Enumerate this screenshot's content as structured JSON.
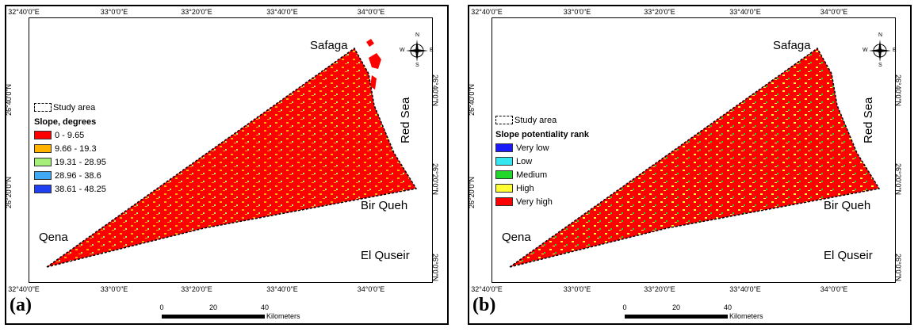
{
  "panels": [
    {
      "label": "(a)",
      "top_ticks": [
        "32°40'0\"E",
        "33°0'0\"E",
        "33°20'0\"E",
        "33°40'0\"E",
        "34°0'0\"E"
      ],
      "bottom_ticks": [
        "32°40'0\"E",
        "33°0'0\"E",
        "33°20'0\"E",
        "33°40'0\"E",
        "34°0'0\"E"
      ],
      "left_ticks": [
        "26°40'0\"N",
        "26°20'0\"N"
      ],
      "right_ticks": [
        "26°40'0\"N",
        "26°20'0\"N",
        "26°0'0\"N"
      ],
      "places": {
        "safaga": "Safaga",
        "red_sea": "Red Sea",
        "bir_queh": "Bir Queh",
        "qena": "Qena",
        "el_quseir": "El Quseir"
      },
      "study_area": "Study area",
      "legend_title": "Slope, degrees",
      "legend_items": [
        {
          "label": "0 - 9.65",
          "color": "#ff0000"
        },
        {
          "label": "9.66 - 19.3",
          "color": "#ffb300"
        },
        {
          "label": "19.31 - 28.95",
          "color": "#a6f07a"
        },
        {
          "label": "28.96 - 38.6",
          "color": "#3fa9f5"
        },
        {
          "label": "38.61 - 48.25",
          "color": "#1f3ff0"
        }
      ],
      "scale": {
        "ticks": [
          "0",
          "20",
          "40"
        ],
        "unit": "Kilometers"
      },
      "compass": {
        "n": "N",
        "s": "S",
        "e": "E",
        "w": "W"
      }
    },
    {
      "label": "(b)",
      "top_ticks": [
        "32°40'0\"E",
        "33°0'0\"E",
        "33°20'0\"E",
        "33°40'0\"E",
        "34°0'0\"E"
      ],
      "bottom_ticks": [
        "32°40'0\"E",
        "33°0'0\"E",
        "33°20'0\"E",
        "33°40'0\"E",
        "34°0'0\"E"
      ],
      "left_ticks": [
        "26°40'0\"N",
        "26°20'0\"N"
      ],
      "right_ticks": [
        "26°40'0\"N",
        "26°20'0\"N",
        "26°0'0\"N"
      ],
      "places": {
        "safaga": "Safaga",
        "red_sea": "Red Sea",
        "bir_queh": "Bir Queh",
        "qena": "Qena",
        "el_quseir": "El Quseir"
      },
      "study_area": "Study area",
      "legend_title": "Slope potentiality rank",
      "legend_items": [
        {
          "label": "Very low",
          "color": "#1a1aff"
        },
        {
          "label": "Low",
          "color": "#33e6f0"
        },
        {
          "label": "Medium",
          "color": "#22d62a"
        },
        {
          "label": "High",
          "color": "#ffff33"
        },
        {
          "label": "Very high",
          "color": "#ff0000"
        }
      ],
      "scale": {
        "ticks": [
          "0",
          "20",
          "40"
        ],
        "unit": "Kilometers"
      },
      "compass": {
        "n": "N",
        "s": "S",
        "e": "E",
        "w": "W"
      }
    }
  ]
}
